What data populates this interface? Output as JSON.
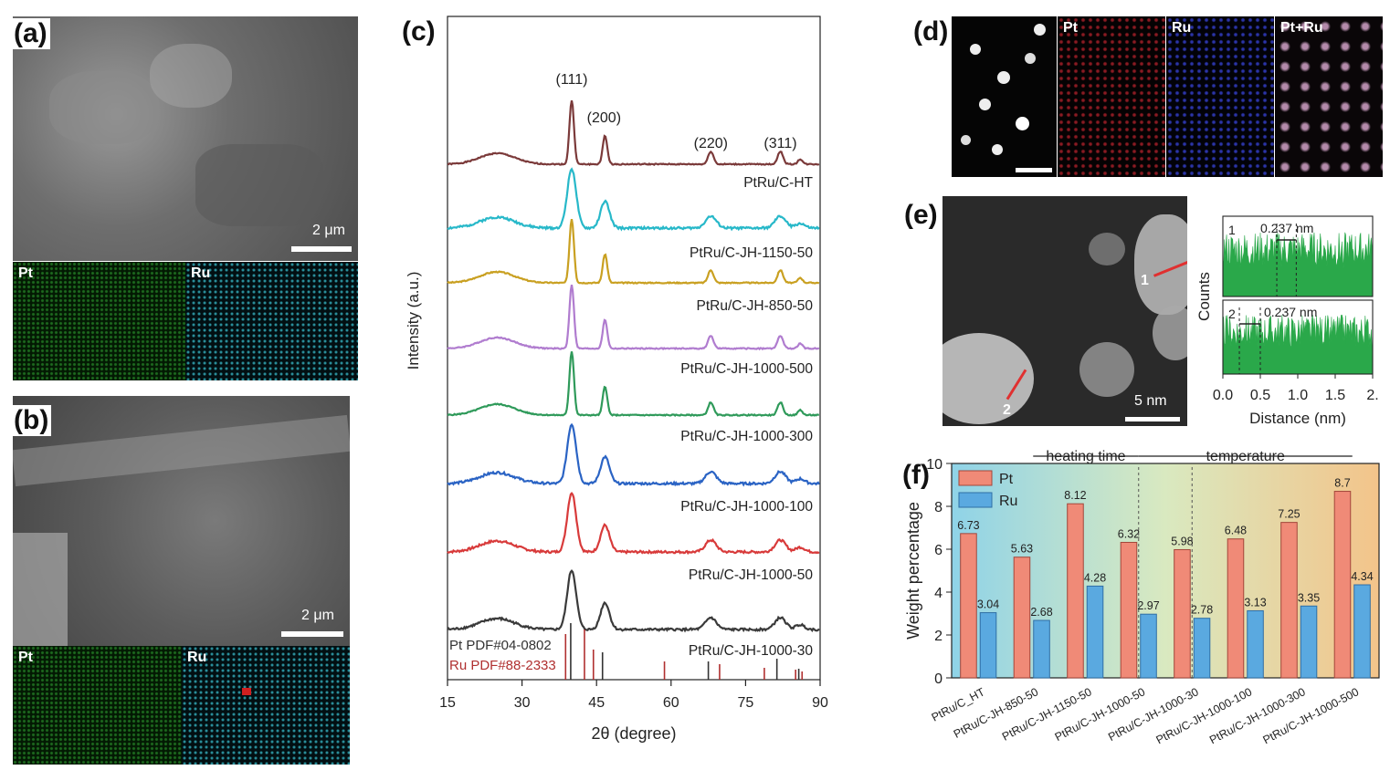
{
  "panels": {
    "a": {
      "label": "(a)",
      "scale": "2 μm",
      "maps": [
        "Pt",
        "Ru"
      ]
    },
    "b": {
      "label": "(b)",
      "scale": "2 μm",
      "maps": [
        "Pt",
        "Ru"
      ]
    },
    "c": {
      "label": "(c)"
    },
    "d": {
      "label": "(d)",
      "maps": [
        "Pt",
        "Ru",
        "Pt+Ru"
      ]
    },
    "e": {
      "label": "(e)",
      "scale": "5 nm",
      "markers": [
        "1",
        "2"
      ]
    },
    "f": {
      "label": "(f)"
    }
  },
  "colors": {
    "pt_map": "#37d03a",
    "ru_map": "#3cc9d6",
    "pt_eds": "#c8282c",
    "ru_eds": "#3b4fe0",
    "pt_bar": "#f08a77",
    "ru_bar": "#5aa9e0",
    "line_profile": "#2aa84a"
  },
  "chart_data": [
    {
      "type": "line",
      "panel": "c",
      "xlabel": "2θ (degree)",
      "ylabel": "Intensity (a.u.)",
      "xlim": [
        15,
        90
      ],
      "xticks": [
        15,
        30,
        45,
        60,
        75,
        90
      ],
      "peaks": [
        {
          "label": "(111)",
          "x": 40
        },
        {
          "label": "(200)",
          "x": 46.5
        },
        {
          "label": "(220)",
          "x": 68
        },
        {
          "label": "(311)",
          "x": 82
        }
      ],
      "series": [
        {
          "name": "PtRu/C-HT",
          "color": "#7b3a3a",
          "width": "narrow"
        },
        {
          "name": "PtRu/C-JH-1150-50",
          "color": "#27b8c9",
          "width": "broad"
        },
        {
          "name": "PtRu/C-JH-850-50",
          "color": "#c9a021",
          "width": "narrow"
        },
        {
          "name": "PtRu/C-JH-1000-500",
          "color": "#b07ccf",
          "width": "narrow"
        },
        {
          "name": "PtRu/C-JH-1000-300",
          "color": "#2f9a5a",
          "width": "narrow"
        },
        {
          "name": "PtRu/C-JH-1000-100",
          "color": "#2a63c4",
          "width": "broad"
        },
        {
          "name": "PtRu/C-JH-1000-50",
          "color": "#d83a3a",
          "width": "broad"
        },
        {
          "name": "PtRu/C-JH-1000-30",
          "color": "#3a3a3a",
          "width": "broad"
        }
      ],
      "references": [
        {
          "name": "Pt PDF#04-0802",
          "color": "#333333",
          "peaks": [
            39.8,
            46.2,
            67.5,
            81.3,
            85.7
          ]
        },
        {
          "name": "Ru PDF#88-2333",
          "color": "#b03030",
          "peaks": [
            38.4,
            42.2,
            44.0,
            58.3,
            69.4,
            78.4,
            84.7,
            86.0
          ]
        }
      ]
    },
    {
      "type": "line",
      "panel": "e",
      "xlabel": "Distance (nm)",
      "ylabel": "Counts",
      "xlim": [
        0,
        2
      ],
      "xticks": [
        "0.0",
        "0.5",
        "1.0",
        "1.5",
        "2."
      ],
      "profiles": [
        {
          "label": "1",
          "spacing": "0.237 nm"
        },
        {
          "label": "2",
          "spacing": "0.237 nm"
        }
      ]
    },
    {
      "type": "bar",
      "panel": "f",
      "ylabel": "Weight percentage",
      "ylim": [
        0,
        10
      ],
      "yticks": [
        0,
        2,
        4,
        6,
        8,
        10
      ],
      "top_labels": [
        "heating time",
        "temperature"
      ],
      "categories": [
        "PtRu/C_HT",
        "PtRu/C-JH-850-50",
        "PtRu/C-JH-1150-50",
        "PtRu/C-JH-1000-50",
        "PtRu/C-JH-1000-30",
        "PtRu/C-JH-1000-100",
        "PtRu/C-JH-1000-300",
        "PtRu/C-JH-1000-500"
      ],
      "series": [
        {
          "name": "Pt",
          "values": [
            6.73,
            5.63,
            8.12,
            6.32,
            5.98,
            6.48,
            7.25,
            8.7
          ],
          "labels": [
            "6.73",
            "5.63",
            "8.12",
            "6.32",
            "5.98",
            "6.48",
            "7.25",
            "8.7"
          ]
        },
        {
          "name": "Ru",
          "values": [
            3.04,
            2.68,
            4.28,
            2.97,
            2.78,
            3.13,
            3.35,
            4.34
          ],
          "labels": [
            "3.04",
            "2.68",
            "4.28",
            "2.97",
            "2.78",
            "3.13",
            "3.35",
            "4.34"
          ]
        }
      ]
    }
  ]
}
